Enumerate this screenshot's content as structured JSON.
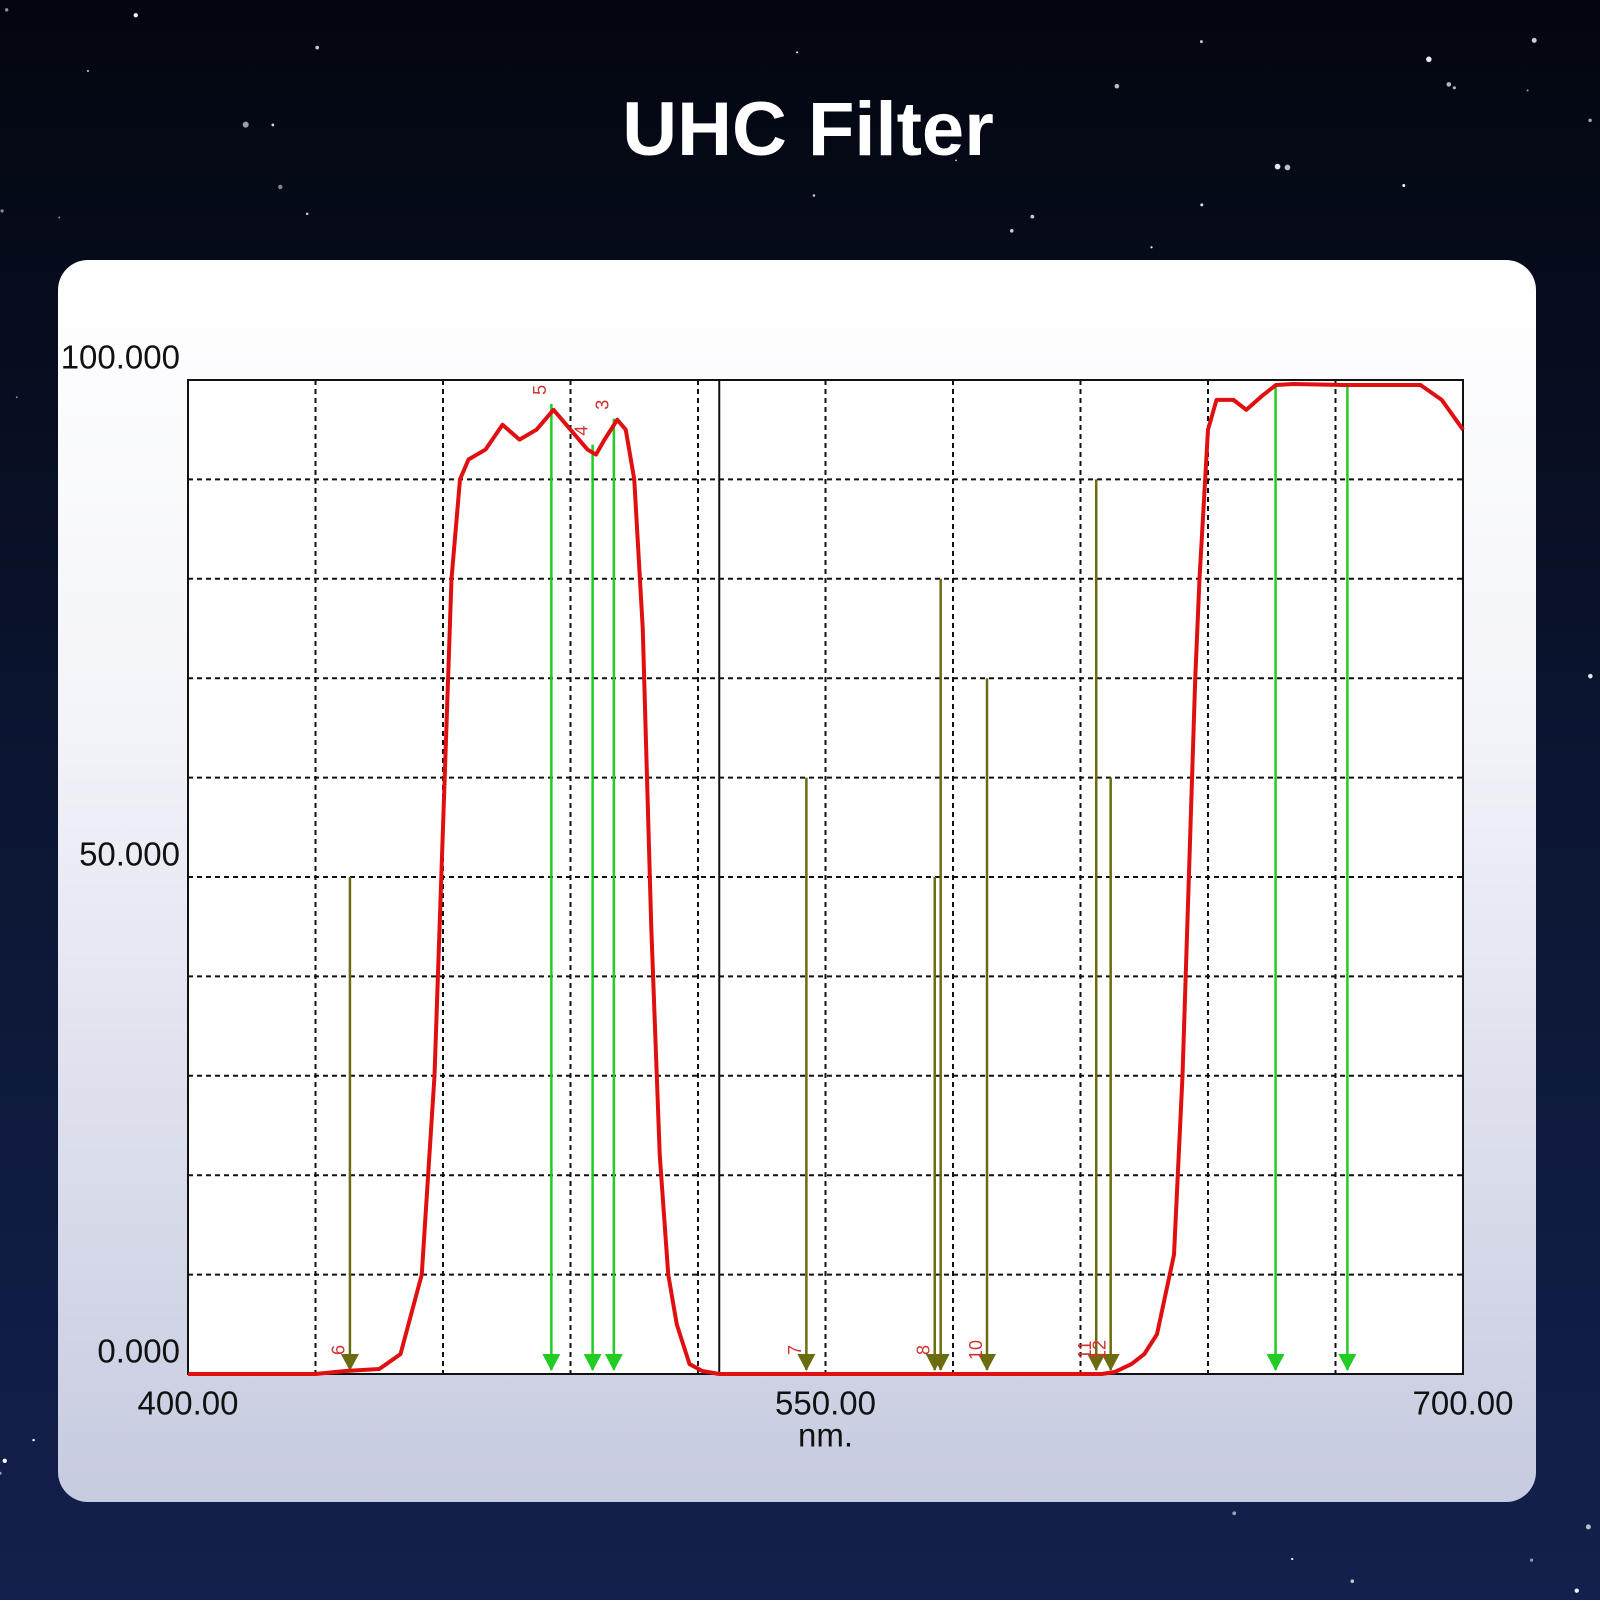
{
  "chart_data": {
    "type": "line",
    "title": "UHC Filter",
    "x_label": "nm.",
    "xlim": [
      400,
      700
    ],
    "ylim": [
      0,
      100
    ],
    "xticks": [
      {
        "value": 400,
        "label": "400.00"
      },
      {
        "value": 550,
        "label": "550.00"
      },
      {
        "value": 700,
        "label": "700.00"
      }
    ],
    "yticks": [
      {
        "value": 0,
        "label": "0.000"
      },
      {
        "value": 50,
        "label": "50.000"
      },
      {
        "value": 100,
        "label": "100.000"
      }
    ],
    "xminor": [
      430,
      460,
      490,
      520,
      550,
      580,
      610,
      640,
      670
    ],
    "yminor": [
      10,
      20,
      30,
      40,
      50,
      60,
      70,
      80,
      90
    ],
    "cursor_x": 525,
    "grid": true,
    "x": [
      400,
      430,
      437,
      445,
      450,
      455,
      458,
      460,
      462,
      464,
      466,
      470,
      474,
      478,
      482,
      486,
      490,
      494,
      496,
      498,
      501,
      503,
      505,
      507,
      509,
      511,
      513,
      515,
      518,
      521,
      525,
      560,
      600,
      615,
      618,
      622,
      625,
      628,
      632,
      634,
      635.5,
      637,
      638,
      640,
      642,
      646,
      649,
      653,
      656,
      660,
      672,
      680,
      690,
      695,
      700
    ],
    "series": [
      {
        "color": "#e01010",
        "values": [
          0,
          0,
          0.3,
          0.5,
          2,
          10,
          30,
          55,
          80,
          90,
          92,
          93,
          95.5,
          94,
          95,
          97,
          95,
          93,
          92.5,
          94,
          96,
          95,
          90,
          75,
          45,
          22,
          10,
          5,
          1,
          0.3,
          0,
          0,
          0,
          0,
          0.2,
          1,
          2,
          4,
          12,
          30,
          50,
          70,
          80,
          95,
          98,
          98,
          97,
          98.5,
          99.5,
          99.6,
          99.5,
          99.5,
          99.5,
          98,
          95
        ]
      }
    ],
    "markers": [
      {
        "color": "#6b6b10",
        "label_color": "#d03030",
        "x": [
          438.1,
          545.5,
          575.7,
          577.1,
          588,
          613.7,
          617.1
        ],
        "y": [
          50,
          60,
          50,
          80,
          70,
          90,
          60
        ],
        "labels": [
          "6",
          "7",
          "8",
          null,
          "10",
          "11",
          "12"
        ]
      },
      {
        "color": "#22cc22",
        "label_color": "#d03030",
        "x": [
          485.5,
          495.2,
          500.2,
          655.9,
          672.8
        ],
        "y": [
          97.6,
          93.5,
          96.1,
          99.5,
          99.5
        ],
        "labels": [
          "5",
          "4",
          "3",
          null,
          null
        ]
      }
    ]
  }
}
